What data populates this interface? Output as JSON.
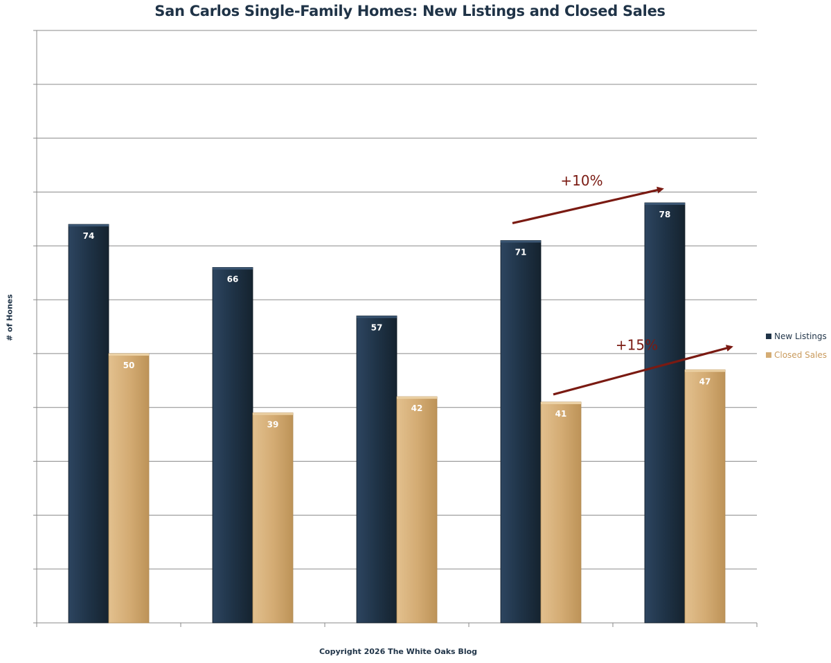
{
  "chart_data": {
    "type": "bar",
    "title": "San Carlos Single-Family Homes: New Listings and Closed Sales",
    "ylabel": "# of Hones",
    "xlabel": "",
    "categories": [
      "",
      "",
      "",
      "",
      ""
    ],
    "ylim": [
      0,
      110
    ],
    "y_gridline_step": 10,
    "grid": true,
    "legend_position": "right",
    "series": [
      {
        "name": "New Listings",
        "color": "#1f3347",
        "values": [
          74,
          66,
          57,
          71,
          78
        ]
      },
      {
        "name": "Closed Sales",
        "color": "#d4ac74",
        "values": [
          50,
          39,
          42,
          41,
          47
        ]
      }
    ],
    "annotations": [
      {
        "text": "+10%",
        "color": "#7a1a12",
        "from_category": 3,
        "to_category": 4,
        "series": "New Listings"
      },
      {
        "text": "+15%",
        "color": "#7a1a12",
        "from_category": 3,
        "to_category": 4,
        "series": "Closed Sales"
      }
    ]
  },
  "footer": {
    "copyright": "Copyright 2026 The White Oaks Blog"
  }
}
